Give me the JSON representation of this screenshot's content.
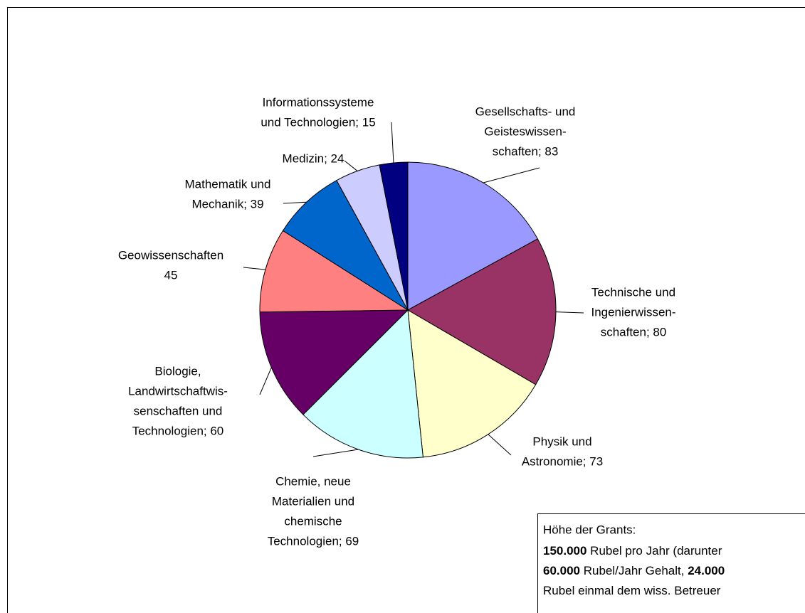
{
  "chart_data": {
    "type": "pie",
    "categories": [
      [
        "Gesellschafts- und",
        "Geisteswissen-",
        "schaften; 83"
      ],
      [
        "Technische und",
        "Ingenierwissen-",
        "schaften; 80"
      ],
      [
        "Physik und",
        "Astronomie; 73"
      ],
      [
        "Chemie, neue",
        "Materialien und",
        "chemische",
        "Technologien; 69"
      ],
      [
        "Biologie,",
        "Landwirtschaftwis-",
        "senschaften und",
        "Technologien; 60"
      ],
      [
        "Geowissenschaften",
        "45"
      ],
      [
        "Mathematik und",
        "Mechanik; 39"
      ],
      [
        "Medizin; 24"
      ],
      [
        "Informationssysteme",
        "und Technologien; 15"
      ]
    ],
    "values": [
      83,
      80,
      73,
      69,
      60,
      45,
      39,
      24,
      15
    ],
    "colors": [
      "#9999ff",
      "#993366",
      "#ffffcc",
      "#ccffff",
      "#660066",
      "#ff8080",
      "#0066cc",
      "#ccccff",
      "#000080"
    ],
    "note": {
      "title": "Höhe der Grants:",
      "lines": [
        [
          {
            "text": "150.000",
            "bold": true
          },
          {
            "text": " Rubel pro Jahr (darunter",
            "bold": false
          }
        ],
        [
          {
            "text": "60.000",
            "bold": true
          },
          {
            "text": " Rubel/Jahr Gehalt, ",
            "bold": false
          },
          {
            "text": "24.000",
            "bold": true
          }
        ],
        [
          {
            "text": "Rubel einmal dem wiss. Betreuer",
            "bold": false
          }
        ]
      ]
    }
  }
}
